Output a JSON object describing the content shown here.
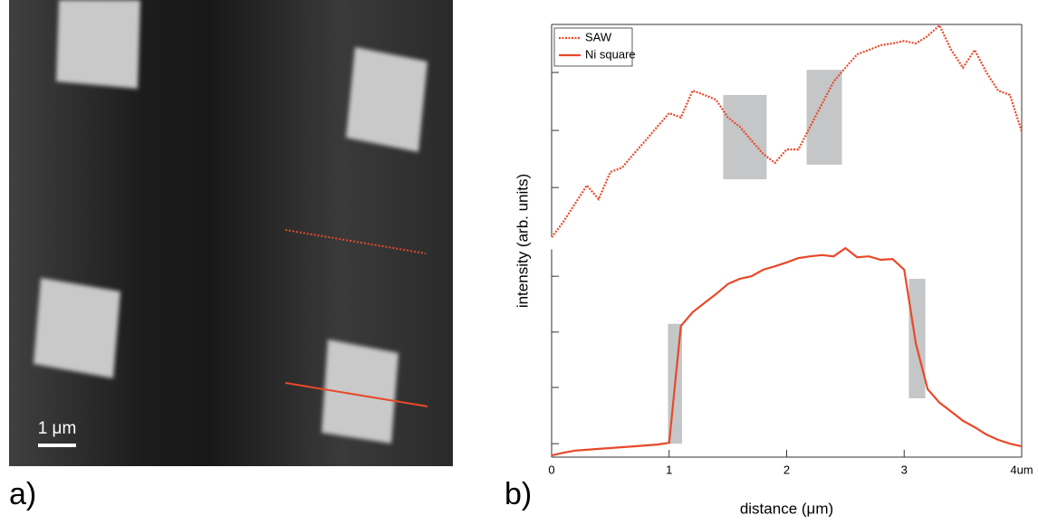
{
  "panel_a": {
    "label": "a)",
    "scale_bar_label": "1 μm"
  },
  "chart_data": {
    "type": "line",
    "panel_label": "b)",
    "xlabel": "distance (μm)",
    "ylabel": "intensity (arb. units)",
    "x": [
      0,
      0.1,
      0.2,
      0.3,
      0.4,
      0.5,
      0.6,
      0.7,
      0.8,
      0.9,
      1.0,
      1.1,
      1.2,
      1.3,
      1.4,
      1.5,
      1.6,
      1.7,
      1.8,
      1.9,
      2.0,
      2.1,
      2.2,
      2.3,
      2.4,
      2.5,
      2.6,
      2.7,
      2.8,
      2.9,
      3.0,
      3.1,
      3.2,
      3.3,
      3.4,
      3.5,
      3.6,
      3.7,
      3.8,
      3.9,
      4.0
    ],
    "series": [
      {
        "name": "SAW",
        "color": "#e8492a",
        "style": "dotted",
        "values": [
          5.08,
          5.44,
          5.86,
          6.28,
          5.96,
          6.59,
          6.69,
          7.01,
          7.32,
          7.64,
          7.95,
          7.85,
          8.47,
          8.37,
          8.26,
          7.85,
          7.64,
          7.32,
          7.01,
          6.8,
          7.11,
          7.11,
          7.64,
          8.16,
          8.68,
          9.0,
          9.31,
          9.41,
          9.52,
          9.56,
          9.62,
          9.56,
          9.73,
          9.98,
          9.41,
          9.0,
          9.41,
          8.89,
          8.47,
          8.37,
          7.53
        ]
      },
      {
        "name": "Ni square",
        "color": "#e8492a",
        "style": "solid",
        "values": [
          0.04,
          0.1,
          0.15,
          0.17,
          0.19,
          0.21,
          0.23,
          0.25,
          0.27,
          0.29,
          0.33,
          3.03,
          3.35,
          3.56,
          3.77,
          4.0,
          4.12,
          4.18,
          4.33,
          4.41,
          4.5,
          4.6,
          4.64,
          4.67,
          4.64,
          4.83,
          4.62,
          4.64,
          4.56,
          4.58,
          4.33,
          2.62,
          1.57,
          1.26,
          1.05,
          0.84,
          0.69,
          0.52,
          0.4,
          0.31,
          0.25
        ]
      }
    ],
    "highlights": [
      {
        "x": [
          0.99,
          1.11
        ],
        "y": [
          0.31,
          3.08
        ]
      },
      {
        "x": [
          1.46,
          1.83
        ],
        "y": [
          6.42,
          8.37
        ]
      },
      {
        "x": [
          2.17,
          2.47
        ],
        "y": [
          6.76,
          8.95
        ]
      },
      {
        "x": [
          3.04,
          3.18
        ],
        "y": [
          1.36,
          4.12
        ]
      }
    ],
    "highlight_color": "#c4c6c8",
    "xlim": [
      0,
      4
    ],
    "ylim": [
      0,
      10
    ],
    "xticks": [
      0,
      1,
      2,
      3,
      {
        "value": 4,
        "label": "4um"
      }
    ],
    "yticks": [
      0.31,
      1.61,
      2.89,
      4.18,
      6.23,
      7.55,
      8.89
    ],
    "y_axis_break": [
      4.8,
      5.1
    ],
    "legend": "top-left"
  }
}
